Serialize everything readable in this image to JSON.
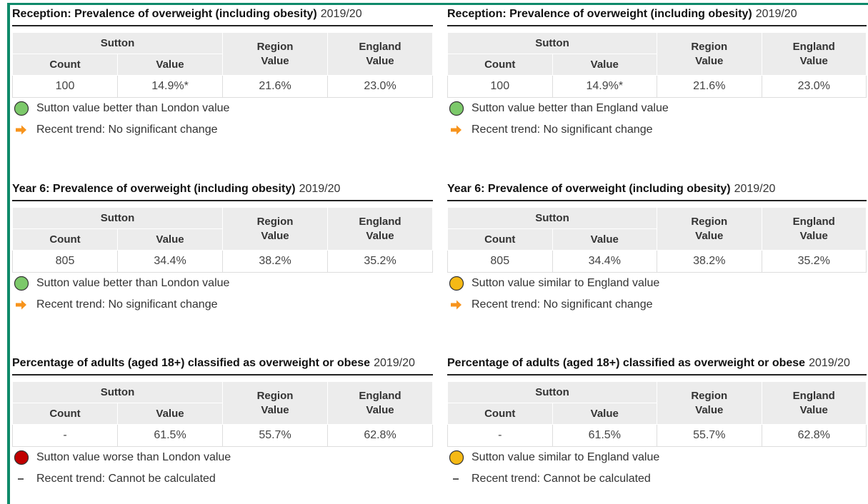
{
  "columns": [
    {
      "panels": [
        {
          "title": "Reception: Prevalence of overweight (including obesity)",
          "period": "2019/20",
          "table": {
            "group": "Sutton",
            "headers": [
              "Count",
              "Value",
              "Region Value",
              "England Value"
            ],
            "row": [
              "100",
              "14.9%*",
              "21.6%",
              "23.0%"
            ]
          },
          "comparison": {
            "text": "Sutton value better than London value",
            "color": "#7cc96a"
          },
          "trend": {
            "text": "Recent trend: No significant change",
            "icon": "arrow"
          }
        },
        {
          "title": "Year 6: Prevalence of overweight (including obesity)",
          "period": "2019/20",
          "table": {
            "group": "Sutton",
            "headers": [
              "Count",
              "Value",
              "Region Value",
              "England Value"
            ],
            "row": [
              "805",
              "34.4%",
              "38.2%",
              "35.2%"
            ]
          },
          "comparison": {
            "text": "Sutton value better than London value",
            "color": "#7cc96a"
          },
          "trend": {
            "text": "Recent trend: No significant change",
            "icon": "arrow"
          }
        },
        {
          "title": "Percentage of adults (aged 18+) classified as overweight or obese",
          "period": "2019/20",
          "table": {
            "group": "Sutton",
            "headers": [
              "Count",
              "Value",
              "Region Value",
              "England Value"
            ],
            "row": [
              "-",
              "61.5%",
              "55.7%",
              "62.8%"
            ]
          },
          "comparison": {
            "text": "Sutton value worse than London value",
            "color": "#c00000"
          },
          "trend": {
            "text": "Recent trend: Cannot be calculated",
            "icon": "dash"
          }
        }
      ]
    },
    {
      "panels": [
        {
          "title": "Reception: Prevalence of overweight (including obesity)",
          "period": "2019/20",
          "table": {
            "group": "Sutton",
            "headers": [
              "Count",
              "Value",
              "Region Value",
              "England Value"
            ],
            "row": [
              "100",
              "14.9%*",
              "21.6%",
              "23.0%"
            ]
          },
          "comparison": {
            "text": "Sutton value better than England value",
            "color": "#7cc96a"
          },
          "trend": {
            "text": "Recent trend: No significant change",
            "icon": "arrow"
          }
        },
        {
          "title": "Year 6: Prevalence of overweight (including obesity)",
          "period": "2019/20",
          "table": {
            "group": "Sutton",
            "headers": [
              "Count",
              "Value",
              "Region Value",
              "England Value"
            ],
            "row": [
              "805",
              "34.4%",
              "38.2%",
              "35.2%"
            ]
          },
          "comparison": {
            "text": "Sutton value similar to England value",
            "color": "#f5b915"
          },
          "trend": {
            "text": "Recent trend: No significant change",
            "icon": "arrow"
          }
        },
        {
          "title": "Percentage of adults (aged 18+) classified as overweight or obese",
          "period": "2019/20",
          "table": {
            "group": "Sutton",
            "headers": [
              "Count",
              "Value",
              "Region Value",
              "England Value"
            ],
            "row": [
              "-",
              "61.5%",
              "55.7%",
              "62.8%"
            ]
          },
          "comparison": {
            "text": "Sutton value similar to England value",
            "color": "#f5b915"
          },
          "trend": {
            "text": "Recent trend: Cannot be calculated",
            "icon": "dash"
          }
        }
      ]
    }
  ]
}
